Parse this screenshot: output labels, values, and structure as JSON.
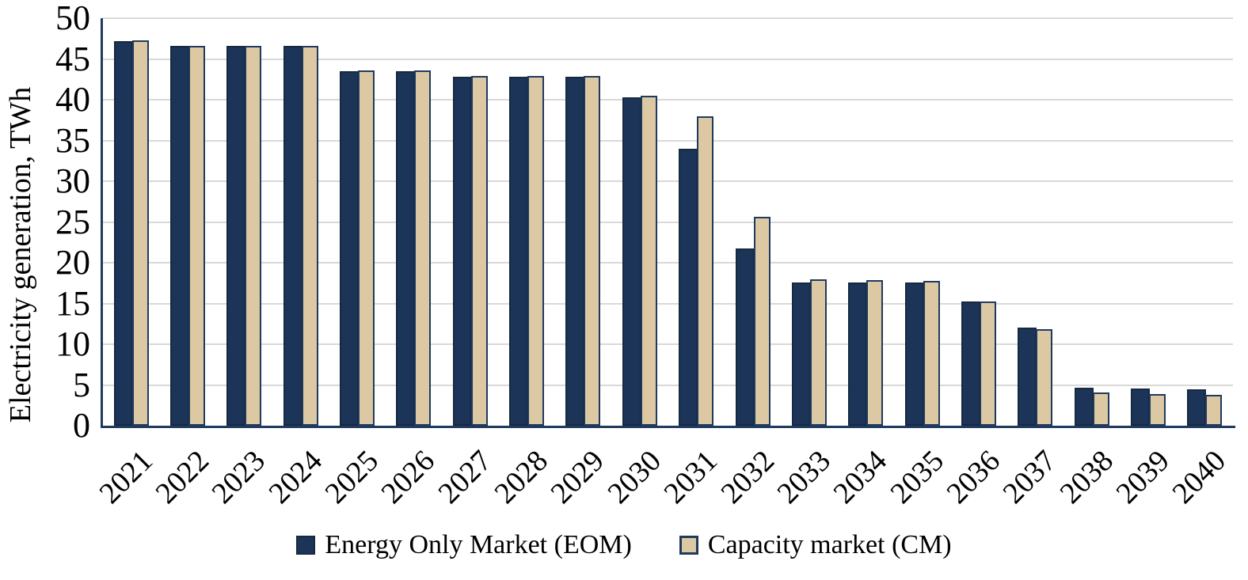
{
  "chart_data": {
    "type": "bar",
    "title": "",
    "xlabel": "",
    "ylabel": "Electricity generation, TWh",
    "ylim": [
      0,
      50
    ],
    "ytick_step": 5,
    "grid": "horizontal-light-gray",
    "legend_position": "bottom-center",
    "categories": [
      "2021",
      "2022",
      "2023",
      "2024",
      "2025",
      "2026",
      "2027",
      "2028",
      "2029",
      "2030",
      "2031",
      "2032",
      "2033",
      "2034",
      "2035",
      "2036",
      "2037",
      "2038",
      "2039",
      "2040"
    ],
    "series": [
      {
        "name": "Energy Only Market (EOM)",
        "color": "#1B3458",
        "border_color": "#16293F",
        "values": [
          47.2,
          46.6,
          46.6,
          46.6,
          43.5,
          43.5,
          42.8,
          42.8,
          42.8,
          40.3,
          34.0,
          21.7,
          17.6,
          17.6,
          17.6,
          15.2,
          12.0,
          4.7,
          4.6,
          4.5
        ]
      },
      {
        "name": "Capacity market (CM)",
        "color": "#DCC8A2",
        "border_color": "#1F3A5F",
        "values": [
          47.3,
          46.6,
          46.6,
          46.6,
          43.6,
          43.6,
          42.9,
          42.9,
          42.9,
          40.5,
          38.0,
          25.6,
          18.0,
          17.9,
          17.8,
          15.2,
          11.8,
          4.1,
          3.9,
          3.8
        ]
      }
    ]
  },
  "colors": {
    "gridline": "#D9D9D9",
    "axis": "#1F3A5F",
    "text": "#000000"
  }
}
